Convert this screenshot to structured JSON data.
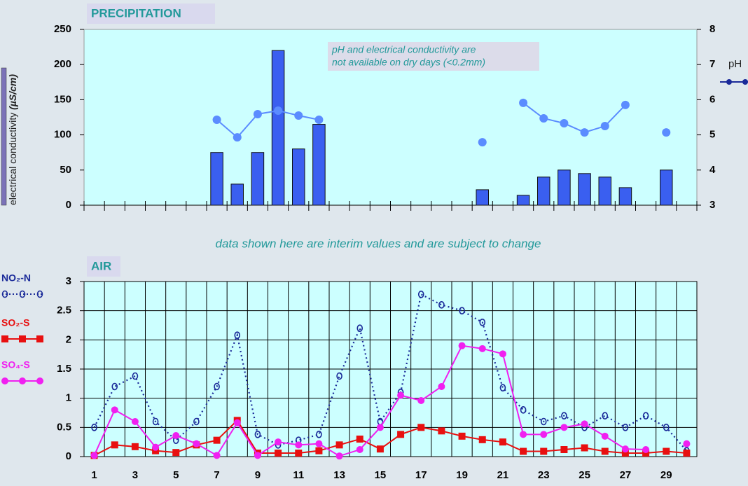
{
  "chart_data": [
    {
      "type": "bar",
      "title": "PRECIPITATION",
      "annotation": [
        "pH and electrical conductivity are",
        "not available on dry days (<0.2mm)"
      ],
      "y_label": "electrical conductivity ",
      "y_unit": "(µS/cm)",
      "x": [
        1,
        2,
        3,
        4,
        5,
        6,
        7,
        8,
        9,
        10,
        11,
        12,
        13,
        14,
        15,
        16,
        17,
        18,
        19,
        20,
        21,
        22,
        23,
        24,
        25,
        26,
        27,
        28,
        29,
        30
      ],
      "xlim": [
        0.5,
        30.5
      ],
      "ylim": [
        0,
        250
      ],
      "yticks": [
        0,
        50,
        100,
        150,
        200,
        250
      ],
      "y2lim": [
        3,
        8
      ],
      "y2ticks": [
        3,
        4,
        5,
        6,
        7,
        8
      ],
      "grid": false,
      "series": [
        {
          "type": "bar",
          "color": "#3a5ff0",
          "values": [
            null,
            null,
            null,
            null,
            null,
            null,
            75,
            30,
            75,
            220,
            80,
            115,
            null,
            null,
            null,
            null,
            null,
            null,
            null,
            22,
            null,
            14,
            40,
            50,
            45,
            40,
            25,
            null,
            50,
            null
          ]
        },
        {
          "type": "line",
          "name": "pH",
          "axis": "y2",
          "color": "#5b8cff",
          "marker": "circle",
          "values": [
            null,
            null,
            null,
            null,
            null,
            null,
            5.43,
            4.93,
            5.59,
            5.69,
            5.55,
            5.43,
            null,
            null,
            null,
            null,
            null,
            null,
            null,
            4.79,
            null,
            5.91,
            5.47,
            5.33,
            5.07,
            5.25,
            5.85,
            null,
            5.07,
            null
          ]
        }
      ]
    },
    {
      "type": "line",
      "title": "AIR",
      "x": [
        1,
        2,
        3,
        4,
        5,
        6,
        7,
        8,
        9,
        10,
        11,
        12,
        13,
        14,
        15,
        16,
        17,
        18,
        19,
        20,
        21,
        22,
        23,
        24,
        25,
        26,
        27,
        28,
        29,
        30
      ],
      "xlim": [
        0.5,
        30.5
      ],
      "xticks": [
        1,
        3,
        5,
        7,
        9,
        11,
        13,
        15,
        17,
        19,
        21,
        23,
        25,
        27,
        29
      ],
      "ylim": [
        0,
        3
      ],
      "yticks": [
        0,
        0.5,
        1,
        1.5,
        2,
        2.5,
        3
      ],
      "grid": true,
      "series": [
        {
          "name": "NO₂-N",
          "color": "#1a2a99",
          "marker": "ring",
          "dash": "dotted",
          "values": [
            0.5,
            1.2,
            1.38,
            0.6,
            0.28,
            0.6,
            1.2,
            2.08,
            0.38,
            0.2,
            0.28,
            0.38,
            1.38,
            2.2,
            0.6,
            1.1,
            2.78,
            2.6,
            2.5,
            2.3,
            1.18,
            0.8,
            0.6,
            0.7,
            0.5,
            0.7,
            0.5,
            0.7,
            0.5,
            0.1
          ]
        },
        {
          "name": "SO₂-S",
          "color": "#e81010",
          "marker": "square",
          "dash": "solid",
          "values": [
            0.02,
            0.2,
            0.17,
            0.1,
            0.07,
            0.2,
            0.28,
            0.62,
            0.06,
            0.06,
            0.06,
            0.1,
            0.2,
            0.3,
            0.13,
            0.38,
            0.5,
            0.44,
            0.35,
            0.29,
            0.25,
            0.09,
            0.09,
            0.12,
            0.15,
            0.09,
            0.06,
            0.06,
            0.09,
            0.06
          ]
        },
        {
          "name": "SO₄-S",
          "color": "#f020f0",
          "marker": "circle",
          "dash": "solid",
          "values": [
            0.02,
            0.8,
            0.6,
            0.16,
            0.36,
            0.22,
            0.02,
            0.58,
            0.02,
            0.25,
            0.2,
            0.22,
            0.01,
            0.12,
            0.5,
            1.05,
            0.96,
            1.2,
            1.9,
            1.85,
            1.76,
            0.38,
            0.38,
            0.5,
            0.56,
            0.35,
            0.13,
            0.12,
            null,
            0.22
          ]
        }
      ]
    }
  ],
  "note": "data shown here are interim values and are subject to change"
}
